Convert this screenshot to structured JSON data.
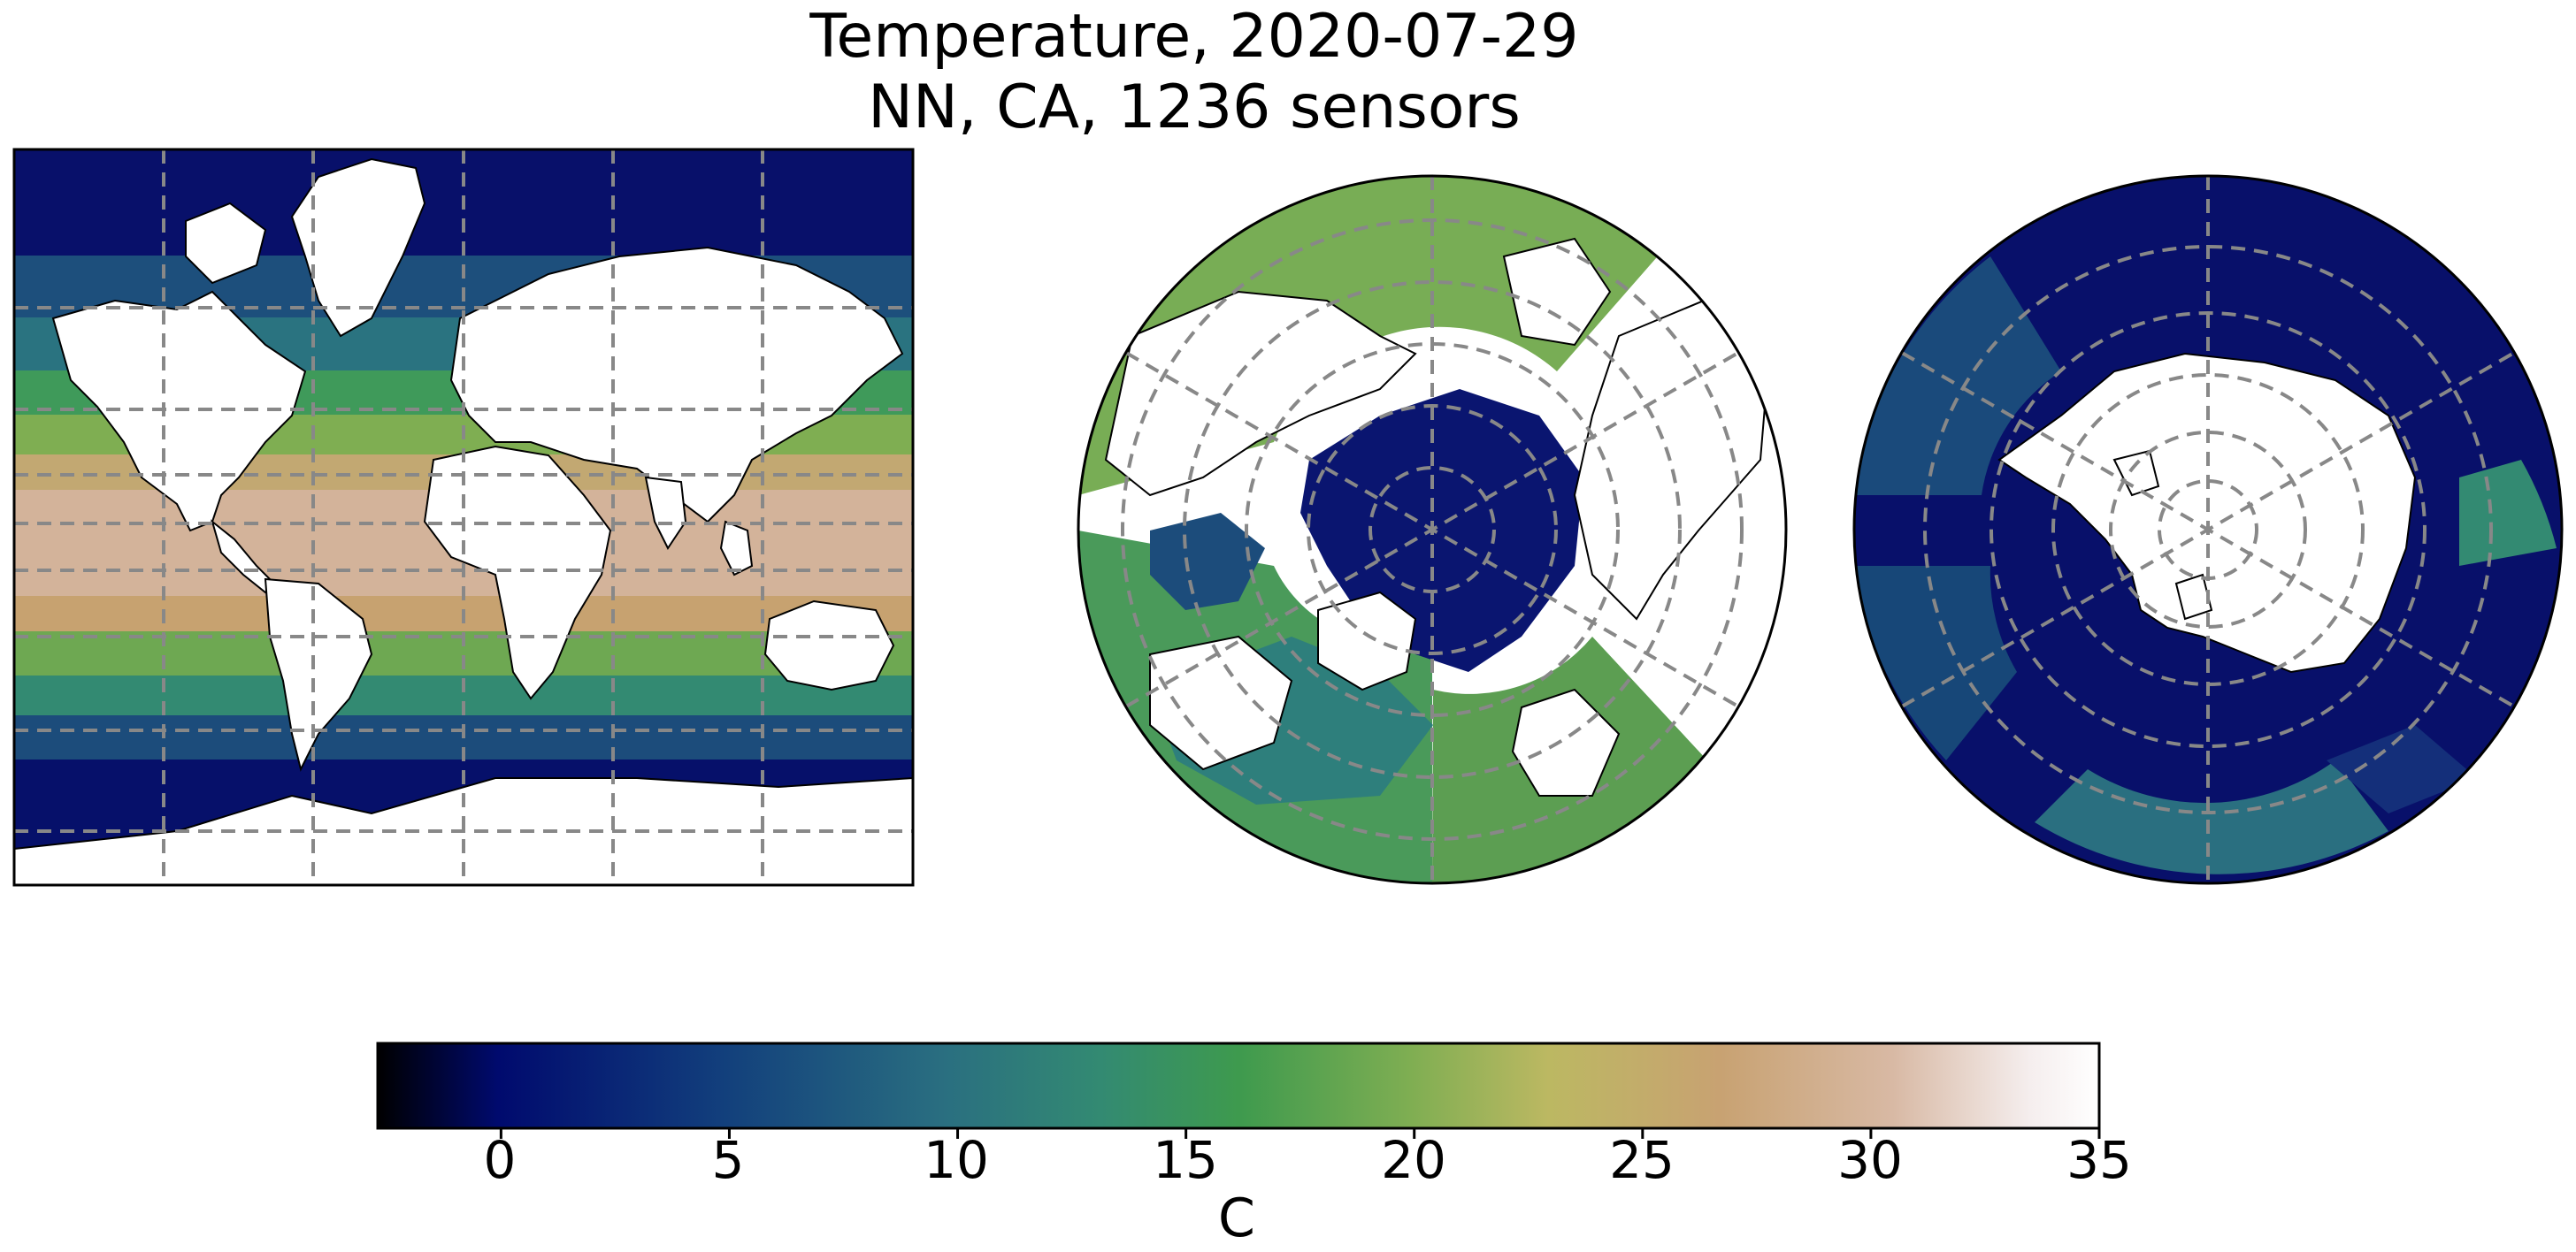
{
  "figure": {
    "title_line1": "Temperature, 2020-07-29",
    "title_line2": "NN, CA, 1236 sensors"
  },
  "maps": [
    {
      "name": "global-mercator",
      "projection": "Mercator"
    },
    {
      "name": "north-polar",
      "projection": "North Polar Stereographic"
    },
    {
      "name": "south-polar",
      "projection": "South Polar Stereographic"
    }
  ],
  "colorbar": {
    "label": "C",
    "colormap": "gist_earth",
    "range": [
      -2.7,
      35
    ],
    "ticks": [
      "0",
      "5",
      "10",
      "15",
      "20",
      "25",
      "30",
      "35"
    ],
    "tick_values": [
      0,
      5,
      10,
      15,
      20,
      25,
      30,
      35
    ],
    "stops": [
      "#000000",
      "#000a6e",
      "#123f7c",
      "#2a6f80",
      "#338a72",
      "#3e9a4e",
      "#7fae52",
      "#bcb862",
      "#c8a272",
      "#d8b9a4",
      "#f5eeee",
      "#ffffff"
    ]
  },
  "colors": {
    "land": "#ffffff",
    "coastline": "#000000",
    "gridline": "#888888"
  }
}
